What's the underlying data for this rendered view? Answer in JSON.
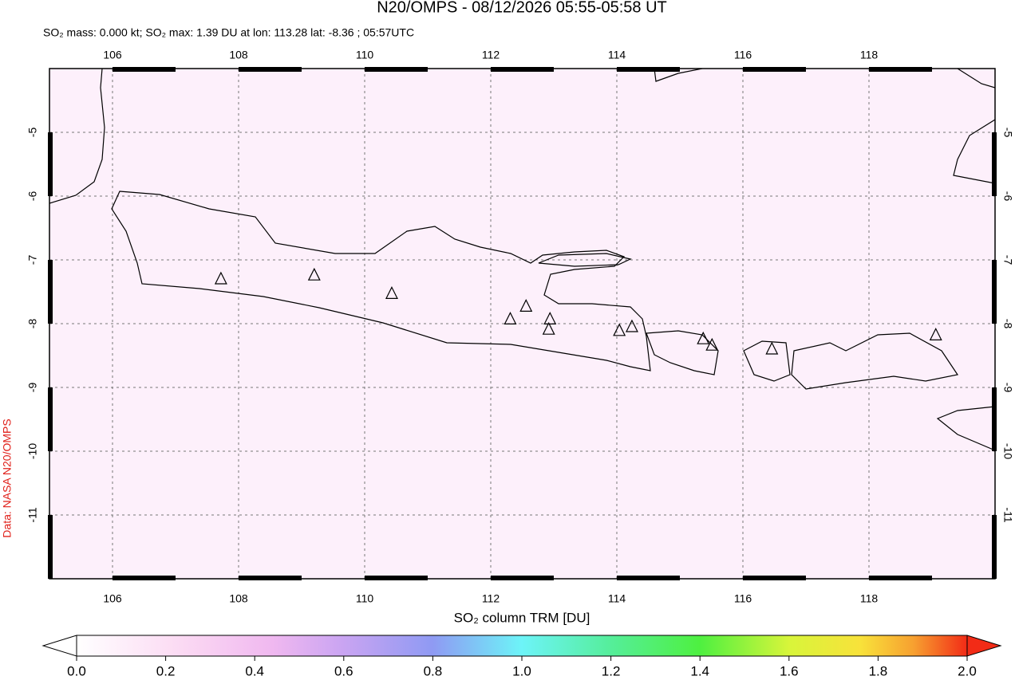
{
  "title": "N20/OMPS - 08/12/2026 05:55-05:58 UT",
  "subtitle": "SO₂ mass: 0.000 kt; SO₂ max: 1.39 DU at lon: 113.28 lat: -8.36 ; 05:57UTC",
  "credit": "Data: NASA N20/OMPS",
  "map": {
    "lon_range": [
      105,
      120
    ],
    "lat_range": [
      -12,
      -4
    ],
    "lon_ticks": [
      106,
      108,
      110,
      112,
      114,
      116,
      118
    ],
    "lat_ticks": [
      -5,
      -6,
      -7,
      -8,
      -9,
      -10,
      -11
    ],
    "volcanoes": [
      [
        107.72,
        -7.3
      ],
      [
        109.2,
        -7.24
      ],
      [
        110.43,
        -7.53
      ],
      [
        112.31,
        -7.93
      ],
      [
        112.56,
        -7.73
      ],
      [
        112.94,
        -7.93
      ],
      [
        112.92,
        -8.09
      ],
      [
        114.04,
        -8.11
      ],
      [
        114.24,
        -8.05
      ],
      [
        115.37,
        -8.24
      ],
      [
        115.51,
        -8.34
      ],
      [
        116.46,
        -8.4
      ],
      [
        119.06,
        -8.18
      ]
    ]
  },
  "colorbar": {
    "label": "SO₂ column TRM [DU]",
    "range": [
      0,
      2
    ],
    "ticks": [
      {
        "value": 0,
        "label": "0.0"
      },
      {
        "value": 0.2,
        "label": "0.2"
      },
      {
        "value": 0.4,
        "label": "0.4"
      },
      {
        "value": 0.6,
        "label": "0.6"
      },
      {
        "value": 0.8,
        "label": "0.8"
      },
      {
        "value": 1,
        "label": "1.0"
      },
      {
        "value": 1.2,
        "label": "1.2"
      },
      {
        "value": 1.4,
        "label": "1.4"
      },
      {
        "value": 1.6,
        "label": "1.6"
      },
      {
        "value": 1.8,
        "label": "1.8"
      },
      {
        "value": 2,
        "label": "2.0"
      }
    ]
  }
}
